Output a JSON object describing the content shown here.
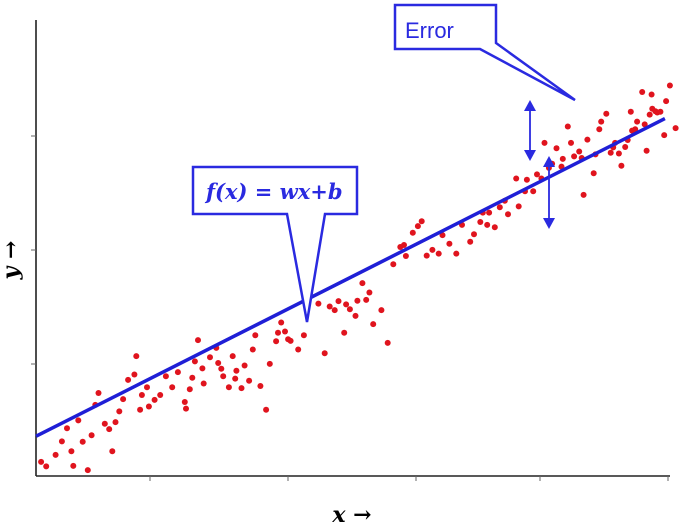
{
  "axes": {
    "x_label": "x →",
    "y_label": "y →"
  },
  "annotations": {
    "error_label": "Error",
    "function_label": "f(x) = wx+b"
  },
  "colors": {
    "axis": "#222222",
    "points": "#e0141e",
    "line": "#1f1fd6",
    "callout": "#2a2ae0"
  },
  "chart_data": {
    "type": "scatter",
    "title": "",
    "xlabel": "x →",
    "ylabel": "y →",
    "xlim": [
      0,
      100
    ],
    "ylim": [
      0,
      100
    ],
    "grid": false,
    "regression_line": {
      "slope": 0.776,
      "intercept": 8.0
    },
    "points": [
      [
        0.5,
        1.5
      ],
      [
        1.3,
        0.4
      ],
      [
        2.8,
        3.2
      ],
      [
        3.8,
        6.5
      ],
      [
        4.6,
        9.7
      ],
      [
        5.3,
        4.1
      ],
      [
        5.6,
        0.5
      ],
      [
        6.4,
        11.6
      ],
      [
        7.1,
        6.4
      ],
      [
        7.9,
        -0.5
      ],
      [
        8.5,
        8.0
      ],
      [
        9.1,
        15.4
      ],
      [
        9.6,
        18.3
      ],
      [
        10.6,
        10.8
      ],
      [
        11.3,
        9.5
      ],
      [
        11.8,
        4.1
      ],
      [
        12.3,
        11.2
      ],
      [
        12.9,
        13.8
      ],
      [
        13.5,
        16.8
      ],
      [
        14.3,
        21.5
      ],
      [
        15.3,
        22.8
      ],
      [
        15.6,
        27.3
      ],
      [
        16.2,
        14.2
      ],
      [
        16.5,
        17.8
      ],
      [
        17.3,
        19.7
      ],
      [
        17.6,
        15.0
      ],
      [
        18.5,
        16.6
      ],
      [
        19.4,
        17.8
      ],
      [
        20.3,
        22.4
      ],
      [
        21.3,
        19.7
      ],
      [
        22.2,
        23.4
      ],
      [
        23.3,
        16.1
      ],
      [
        23.5,
        14.5
      ],
      [
        24.1,
        19.2
      ],
      [
        24.5,
        22.0
      ],
      [
        24.9,
        26.0
      ],
      [
        25.4,
        31.2
      ],
      [
        26.1,
        24.3
      ],
      [
        26.3,
        20.6
      ],
      [
        27.3,
        27.0
      ],
      [
        28.3,
        29.3
      ],
      [
        28.6,
        25.6
      ],
      [
        29.1,
        24.2
      ],
      [
        29.4,
        22.4
      ],
      [
        30.3,
        19.7
      ],
      [
        30.9,
        27.3
      ],
      [
        31.3,
        21.8
      ],
      [
        31.5,
        23.7
      ],
      [
        32.3,
        19.5
      ],
      [
        32.8,
        25.0
      ],
      [
        33.5,
        21.3
      ],
      [
        34.1,
        28.9
      ],
      [
        34.5,
        32.4
      ],
      [
        35.3,
        20.0
      ],
      [
        36.2,
        14.2
      ],
      [
        36.8,
        25.4
      ],
      [
        37.8,
        30.9
      ],
      [
        38.1,
        33.0
      ],
      [
        38.6,
        35.5
      ],
      [
        39.2,
        33.3
      ],
      [
        39.7,
        31.4
      ],
      [
        40.1,
        31.0
      ],
      [
        41.3,
        28.9
      ],
      [
        42.2,
        32.4
      ],
      [
        42.7,
        39.2
      ],
      [
        44.5,
        40.1
      ],
      [
        45.5,
        28.0
      ],
      [
        46.3,
        39.4
      ],
      [
        47.1,
        38.5
      ],
      [
        47.7,
        40.7
      ],
      [
        48.6,
        33.0
      ],
      [
        48.9,
        39.9
      ],
      [
        49.5,
        38.7
      ],
      [
        50.4,
        37.1
      ],
      [
        50.7,
        40.8
      ],
      [
        51.5,
        45.1
      ],
      [
        52.1,
        41.0
      ],
      [
        52.6,
        42.8
      ],
      [
        53.2,
        35.1
      ],
      [
        54.5,
        38.5
      ],
      [
        55.5,
        30.5
      ],
      [
        56.4,
        49.7
      ],
      [
        57.5,
        53.9
      ],
      [
        58.1,
        54.4
      ],
      [
        58.4,
        51.7
      ],
      [
        59.5,
        57.4
      ],
      [
        60.3,
        59.0
      ],
      [
        60.9,
        60.2
      ],
      [
        61.7,
        51.8
      ],
      [
        62.6,
        53.2
      ],
      [
        63.6,
        52.3
      ],
      [
        64.2,
        56.8
      ],
      [
        65.3,
        54.7
      ],
      [
        66.4,
        52.3
      ],
      [
        67.3,
        59.3
      ],
      [
        68.6,
        55.2
      ],
      [
        69.2,
        57.0
      ],
      [
        70.2,
        60.0
      ],
      [
        70.6,
        62.3
      ],
      [
        71.3,
        59.3
      ],
      [
        71.6,
        62.3
      ],
      [
        72.5,
        58.7
      ],
      [
        73.3,
        63.6
      ],
      [
        74.1,
        65.2
      ],
      [
        74.6,
        61.9
      ],
      [
        75.9,
        70.6
      ],
      [
        76.3,
        63.8
      ],
      [
        77.3,
        67.5
      ],
      [
        77.6,
        70.3
      ],
      [
        78.6,
        67.5
      ],
      [
        79.2,
        71.6
      ],
      [
        79.9,
        70.6
      ],
      [
        80.4,
        79.3
      ],
      [
        81.1,
        73.2
      ],
      [
        81.6,
        74.2
      ],
      [
        82.3,
        78.0
      ],
      [
        83.1,
        73.5
      ],
      [
        83.3,
        75.4
      ],
      [
        84.1,
        83.3
      ],
      [
        84.6,
        79.3
      ],
      [
        85.1,
        76.0
      ],
      [
        85.9,
        77.2
      ],
      [
        86.3,
        75.6
      ],
      [
        86.6,
        66.6
      ],
      [
        87.2,
        80.1
      ],
      [
        88.2,
        71.9
      ],
      [
        88.5,
        76.5
      ],
      [
        89.1,
        82.6
      ],
      [
        89.4,
        84.5
      ],
      [
        90.2,
        86.4
      ],
      [
        90.9,
        76.9
      ],
      [
        91.3,
        78.2
      ],
      [
        91.6,
        79.3
      ],
      [
        92.2,
        76.7
      ],
      [
        92.6,
        73.7
      ],
      [
        93.2,
        78.3
      ],
      [
        93.6,
        80.0
      ],
      [
        94.1,
        86.9
      ],
      [
        94.3,
        82.3
      ],
      [
        94.8,
        82.6
      ],
      [
        95.1,
        84.5
      ],
      [
        95.9,
        91.7
      ],
      [
        96.3,
        83.8
      ],
      [
        96.6,
        77.4
      ],
      [
        97.1,
        86.2
      ],
      [
        97.4,
        91.1
      ],
      [
        97.5,
        87.6
      ],
      [
        98.0,
        87.0
      ],
      [
        98.3,
        86.7
      ],
      [
        98.8,
        86.9
      ],
      [
        99.4,
        81.2
      ],
      [
        99.7,
        89.5
      ],
      [
        100.3,
        93.3
      ],
      [
        101.2,
        82.9
      ]
    ]
  }
}
